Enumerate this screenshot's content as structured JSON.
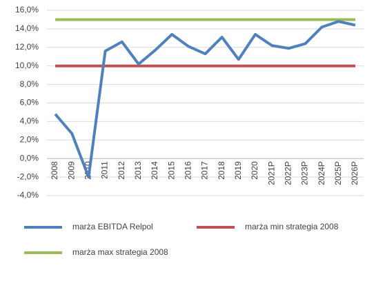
{
  "chart_data": {
    "type": "line",
    "categories": [
      "2008",
      "2009",
      "2010",
      "2011",
      "2012",
      "2013",
      "2014",
      "2015",
      "2016",
      "2017",
      "2018",
      "2019",
      "2020",
      "2021P",
      "2022P",
      "2023P",
      "2024P",
      "2025P",
      "2026P"
    ],
    "series": [
      {
        "name": "marża EBITDA Relpol",
        "color": "#4f81bd",
        "values": [
          4.8,
          2.7,
          -2.0,
          11.6,
          12.6,
          10.2,
          11.7,
          13.4,
          12.1,
          11.3,
          13.1,
          10.7,
          13.4,
          12.2,
          11.9,
          12.4,
          14.2,
          14.8,
          14.4
        ]
      },
      {
        "name": "marża min strategia 2008",
        "color": "#c0504d",
        "values": [
          10,
          10,
          10,
          10,
          10,
          10,
          10,
          10,
          10,
          10,
          10,
          10,
          10,
          10,
          10,
          10,
          10,
          10,
          10
        ]
      },
      {
        "name": "marża max strategia 2008",
        "color": "#9bbb59",
        "values": [
          15,
          15,
          15,
          15,
          15,
          15,
          15,
          15,
          15,
          15,
          15,
          15,
          15,
          15,
          15,
          15,
          15,
          15,
          15
        ]
      }
    ],
    "ylim": [
      -4,
      16
    ],
    "yticks": [
      {
        "value": -4,
        "label": "-4,0%"
      },
      {
        "value": -2,
        "label": "-2,0%"
      },
      {
        "value": 0,
        "label": "0,0%"
      },
      {
        "value": 2,
        "label": "2,0%"
      },
      {
        "value": 4,
        "label": "4,0%"
      },
      {
        "value": 6,
        "label": "6,0%"
      },
      {
        "value": 8,
        "label": "8,0%"
      },
      {
        "value": 10,
        "label": "10,0%"
      },
      {
        "value": 12,
        "label": "12,0%"
      },
      {
        "value": 14,
        "label": "14,0%"
      },
      {
        "value": 16,
        "label": "16,0%"
      }
    ],
    "grid": true
  }
}
